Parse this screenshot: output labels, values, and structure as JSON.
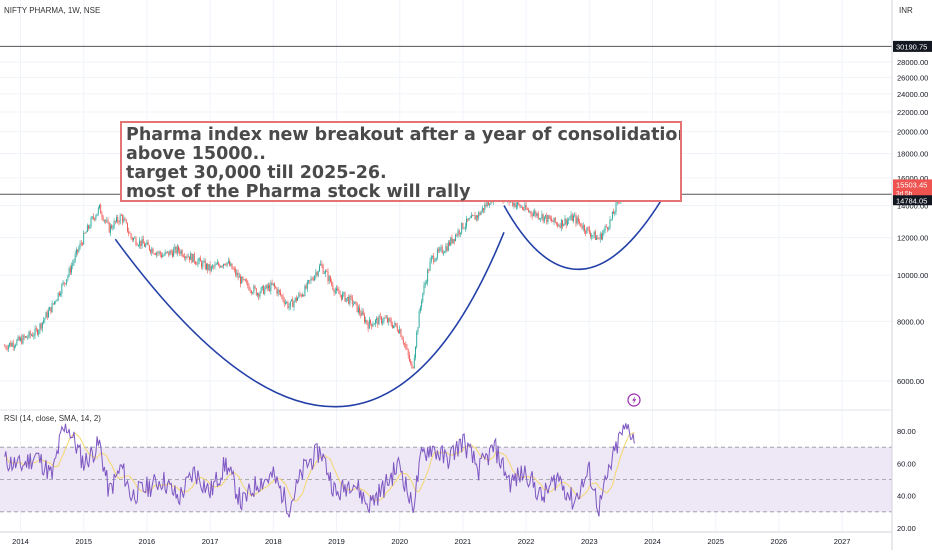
{
  "header": {
    "symbol_label": "NIFTY PHARMA, 1W, NSE",
    "currency": "INR",
    "alert_icon": "lightning-alert-icon"
  },
  "annotation": {
    "lines": [
      "Pharma index new breakout after a year of consolidation",
      "above 15000..",
      "target 30,000 till 2025-26.",
      "most of the Pharma stock will rally"
    ]
  },
  "price_tags": {
    "target": "30190.75",
    "last": "15503.45",
    "last_sub": "3d 5h",
    "breakout": "14784.05"
  },
  "rsi": {
    "label": "RSI (14, close, SMA, 14, 2)"
  },
  "colors": {
    "up": "#26a69a",
    "down": "#ef5350",
    "curve": "#2340a8",
    "rsi": "#7e57c2",
    "rsi_sma": "#f5d76e",
    "rsi_band": "#ede7f6",
    "annotation_border": "#e57373",
    "alert": "#9c27b0"
  },
  "chart_data": {
    "type": "candlestick",
    "title": "NIFTY PHARMA, 1W, NSE",
    "x_ticks": [
      "2014",
      "2015",
      "2016",
      "2017",
      "2018",
      "2019",
      "2020",
      "2021",
      "2022",
      "2023",
      "2024",
      "2025",
      "2026",
      "2027"
    ],
    "y_ticks": [
      "6000.00",
      "8000.00",
      "10000.00",
      "12000.00",
      "14000.00",
      "16000.00",
      "18000.00",
      "20000.00",
      "22000.00",
      "24000.00",
      "26000.00",
      "28000.00"
    ],
    "y_tick_values": [
      6000,
      8000,
      10000,
      12000,
      14000,
      16000,
      18000,
      20000,
      22000,
      24000,
      26000,
      28000
    ],
    "ylim": [
      4200,
      30600
    ],
    "xlim": [
      2013.75,
      2028.0
    ],
    "horizontal_lines": [
      30190.75,
      14784.05
    ],
    "price_path": [
      [
        2013.75,
        7100
      ],
      [
        2014.0,
        7300
      ],
      [
        2014.25,
        7600
      ],
      [
        2014.5,
        8600
      ],
      [
        2014.75,
        10000
      ],
      [
        2015.0,
        12000
      ],
      [
        2015.15,
        13200
      ],
      [
        2015.25,
        13800
      ],
      [
        2015.4,
        12500
      ],
      [
        2015.6,
        13300
      ],
      [
        2015.75,
        12000
      ],
      [
        2016.0,
        11500
      ],
      [
        2016.25,
        11000
      ],
      [
        2016.5,
        11300
      ],
      [
        2016.75,
        10800
      ],
      [
        2017.0,
        10300
      ],
      [
        2017.25,
        10700
      ],
      [
        2017.5,
        9700
      ],
      [
        2017.75,
        9200
      ],
      [
        2018.0,
        9500
      ],
      [
        2018.25,
        8600
      ],
      [
        2018.5,
        9300
      ],
      [
        2018.75,
        10500
      ],
      [
        2019.0,
        9200
      ],
      [
        2019.25,
        8800
      ],
      [
        2019.5,
        7900
      ],
      [
        2019.75,
        8100
      ],
      [
        2020.0,
        7700
      ],
      [
        2020.2,
        6300
      ],
      [
        2020.35,
        9000
      ],
      [
        2020.5,
        10800
      ],
      [
        2020.75,
        11500
      ],
      [
        2021.0,
        12700
      ],
      [
        2021.25,
        13400
      ],
      [
        2021.5,
        14800
      ],
      [
        2021.75,
        14300
      ],
      [
        2022.0,
        13700
      ],
      [
        2022.25,
        13300
      ],
      [
        2022.5,
        12800
      ],
      [
        2022.75,
        13200
      ],
      [
        2023.0,
        12300
      ],
      [
        2023.15,
        11900
      ],
      [
        2023.35,
        13100
      ],
      [
        2023.5,
        14800
      ],
      [
        2023.62,
        15700
      ],
      [
        2023.72,
        15503.45
      ]
    ],
    "curves": [
      {
        "name": "",
        "from": [
          2015.5,
          11900
        ],
        "bottom": [
          2019.0,
          5300
        ],
        "to": [
          2021.65,
          12300
        ]
      },
      {
        "name": "",
        "from": [
          2021.65,
          14000
        ],
        "bottom": [
          2022.9,
          10300
        ],
        "to": [
          2024.25,
          15200
        ]
      }
    ],
    "rsi": {
      "ylim": [
        18,
        92
      ],
      "y_ticks": [
        "20.00",
        "40.00",
        "60.00",
        "80.00"
      ],
      "y_tick_values": [
        20,
        40,
        60,
        80
      ],
      "upper_band": 70,
      "lower_band": 30,
      "mid": 50,
      "points": [
        [
          2013.75,
          62
        ],
        [
          2014.0,
          58
        ],
        [
          2014.25,
          65
        ],
        [
          2014.5,
          52
        ],
        [
          2014.65,
          78
        ],
        [
          2014.75,
          83
        ],
        [
          2015.0,
          60
        ],
        [
          2015.25,
          72
        ],
        [
          2015.4,
          42
        ],
        [
          2015.6,
          58
        ],
        [
          2015.75,
          40
        ],
        [
          2016.0,
          45
        ],
        [
          2016.25,
          50
        ],
        [
          2016.5,
          38
        ],
        [
          2016.75,
          55
        ],
        [
          2017.0,
          42
        ],
        [
          2017.25,
          60
        ],
        [
          2017.5,
          35
        ],
        [
          2017.75,
          48
        ],
        [
          2018.0,
          52
        ],
        [
          2018.25,
          33
        ],
        [
          2018.5,
          58
        ],
        [
          2018.75,
          68
        ],
        [
          2019.0,
          40
        ],
        [
          2019.25,
          50
        ],
        [
          2019.5,
          34
        ],
        [
          2019.75,
          45
        ],
        [
          2020.0,
          60
        ],
        [
          2020.2,
          32
        ],
        [
          2020.35,
          65
        ],
        [
          2020.5,
          70
        ],
        [
          2020.75,
          62
        ],
        [
          2021.0,
          74
        ],
        [
          2021.25,
          56
        ],
        [
          2021.5,
          70
        ],
        [
          2021.75,
          48
        ],
        [
          2022.0,
          55
        ],
        [
          2022.25,
          38
        ],
        [
          2022.5,
          52
        ],
        [
          2022.75,
          36
        ],
        [
          2023.0,
          55
        ],
        [
          2023.15,
          32
        ],
        [
          2023.35,
          60
        ],
        [
          2023.5,
          78
        ],
        [
          2023.62,
          82
        ],
        [
          2023.72,
          76
        ]
      ]
    }
  }
}
